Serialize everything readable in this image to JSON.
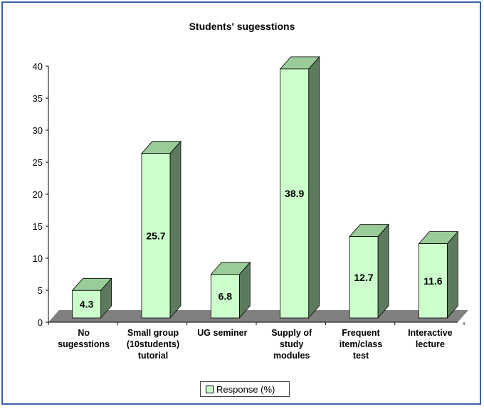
{
  "chart_data": {
    "type": "bar",
    "title": "Students' sugesstions",
    "xlabel": "",
    "ylabel": "",
    "categories": [
      [
        "No",
        "sugesstions"
      ],
      [
        "Small group",
        "(10students)",
        "tutorial"
      ],
      [
        "UG seminer"
      ],
      [
        "Supply of",
        "study",
        "modules"
      ],
      [
        "Frequent",
        "item/class",
        "test"
      ],
      [
        "Interactive",
        "lecture"
      ]
    ],
    "series": [
      {
        "name": "Response (%)",
        "values": [
          4.3,
          25.7,
          6.8,
          38.9,
          12.7,
          11.6
        ]
      }
    ],
    "data_labels": [
      "4.3",
      "25.7",
      "6.8",
      "38.9",
      "12.7",
      "11.6"
    ],
    "ylim": [
      0,
      40
    ],
    "yticks": [
      0,
      5,
      10,
      15,
      20,
      25,
      30,
      35,
      40
    ],
    "grid": false,
    "legend": "bottom-center",
    "three_d": true,
    "colors": {
      "bar_front": "#ccffcc",
      "bar_top": "#99cc99",
      "bar_side": "#5e7a5e",
      "floor": "#808080",
      "border": "#3a62a8"
    }
  }
}
